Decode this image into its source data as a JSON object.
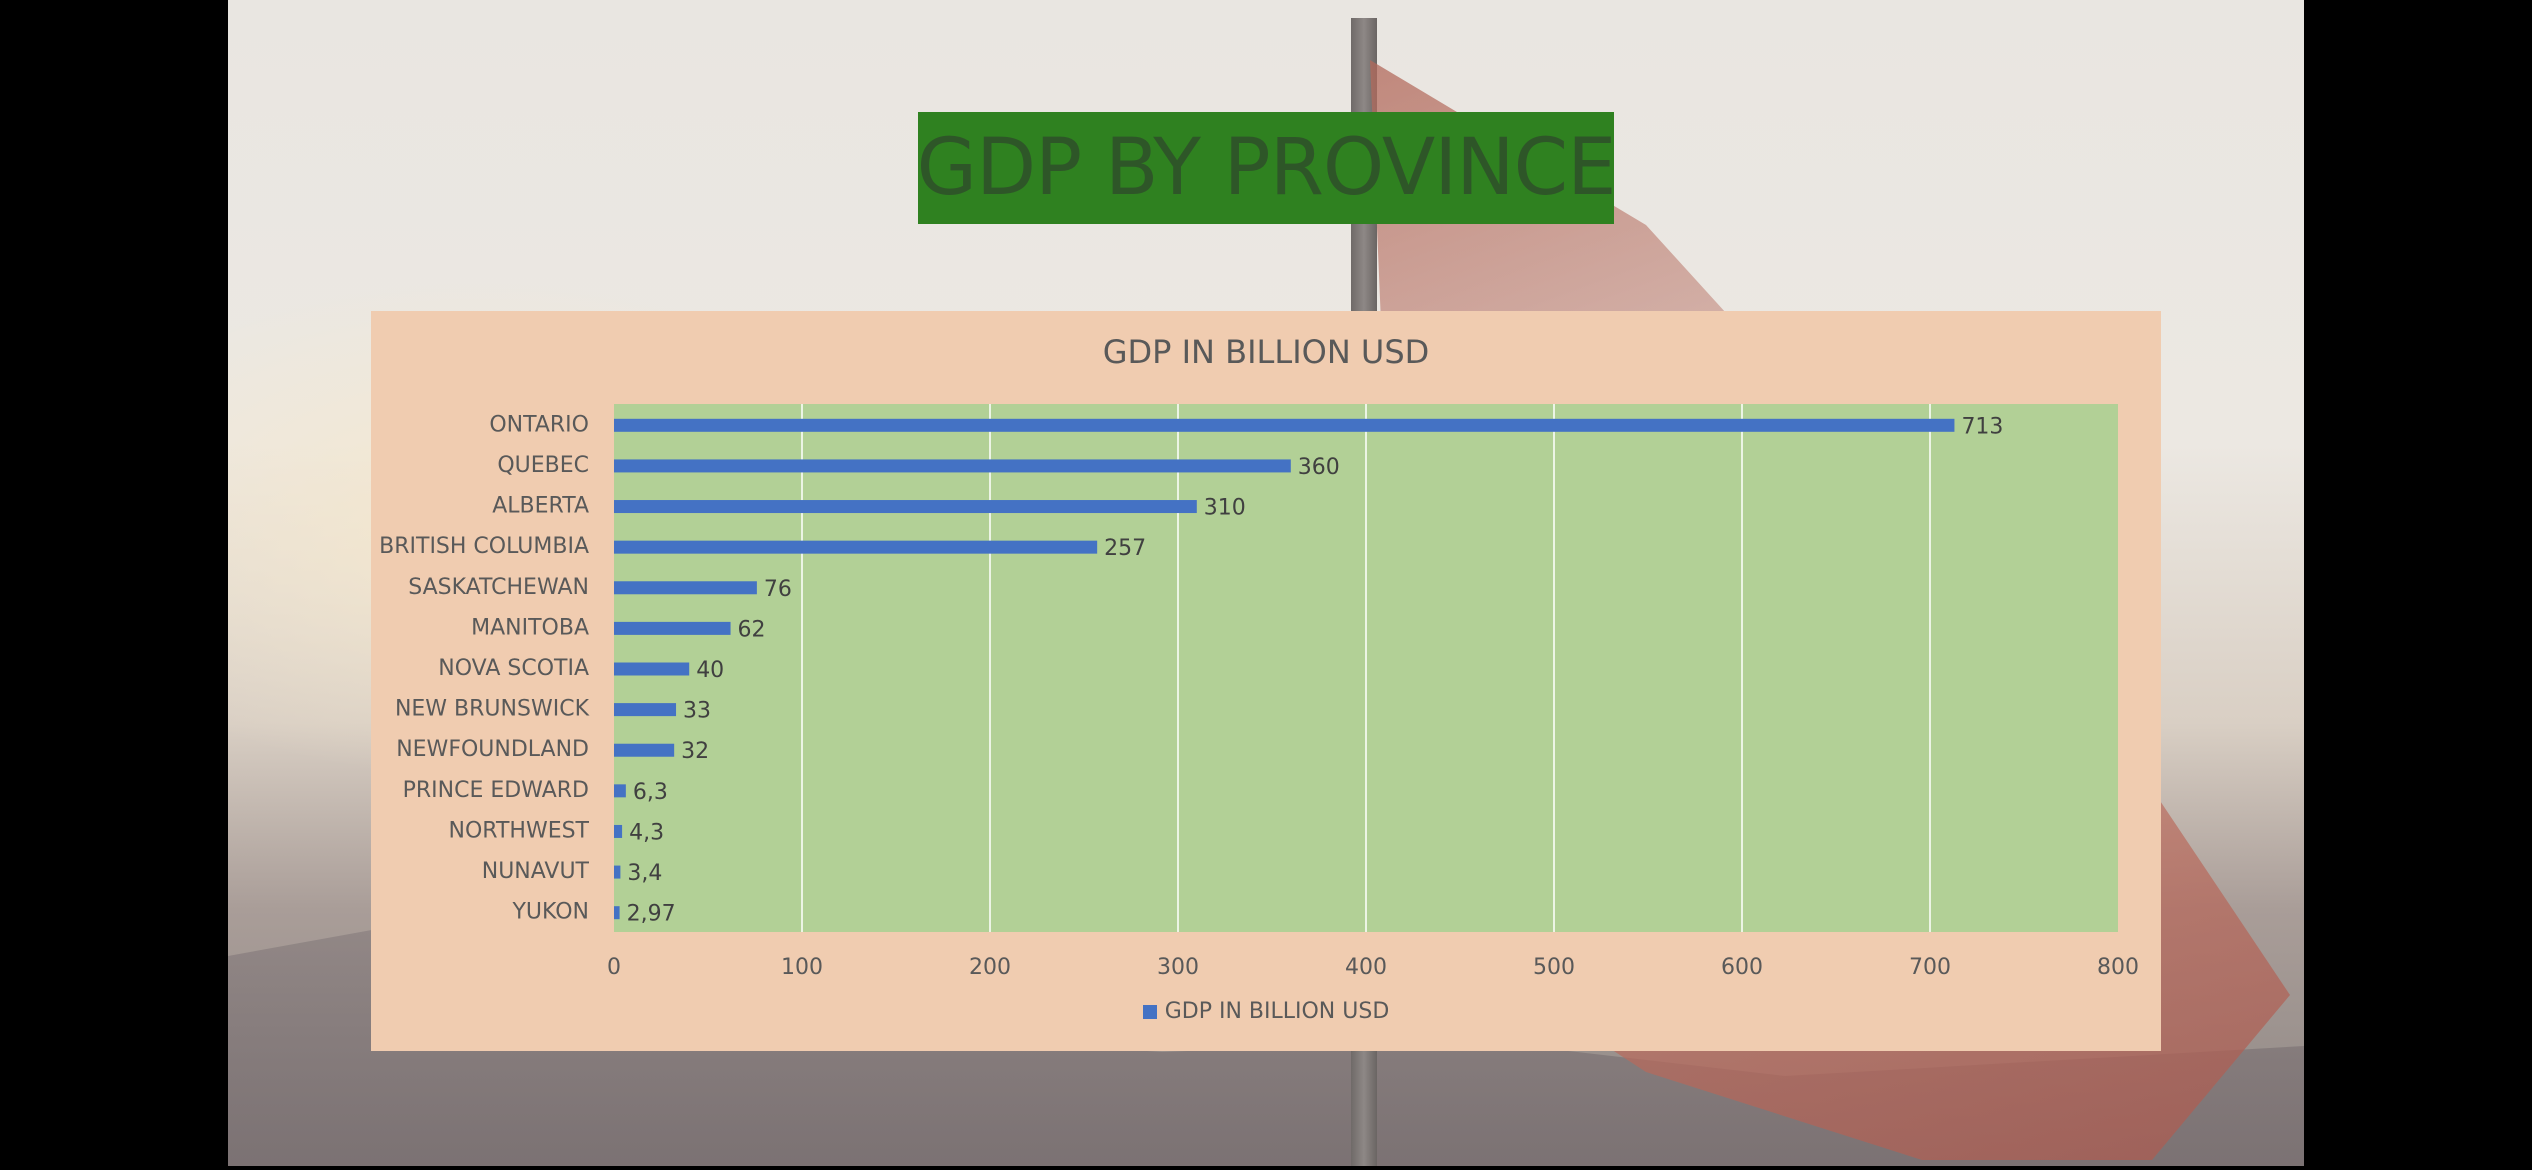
{
  "slide": {
    "title": "GDP BY PROVINCE"
  },
  "chart_data": {
    "type": "bar",
    "orientation": "horizontal",
    "title": "GDP IN BILLION USD",
    "categories": [
      "ONTARIO",
      "QUEBEC",
      "ALBERTA",
      "BRITISH COLUMBIA",
      "SASKATCHEWAN",
      "MANITOBA",
      "NOVA SCOTIA",
      "NEW BRUNSWICK",
      "NEWFOUNDLAND",
      "PRINCE EDWARD",
      "NORTHWEST",
      "NUNAVUT",
      "YUKON"
    ],
    "series": [
      {
        "name": "GDP IN BILLION USD",
        "values": [
          713,
          360,
          310,
          257,
          76,
          62,
          40,
          33,
          32,
          6.3,
          4.3,
          3.4,
          2.97
        ],
        "value_labels": [
          "713",
          "360",
          "310",
          "257",
          "76",
          "62",
          "40",
          "33",
          "32",
          "6,3",
          "4,3",
          "3,4",
          "2,97"
        ]
      }
    ],
    "xlim": [
      0,
      800
    ],
    "xticks": [
      0,
      100,
      200,
      300,
      400,
      500,
      600,
      700,
      800
    ],
    "xlabel": "",
    "ylabel": "",
    "grid": true,
    "legend": "bottom",
    "colors": {
      "bar": "#4472c4",
      "plot_background": "#b2d096",
      "chart_background": "#f0ccb0",
      "gridline": "#ffffff",
      "title_bar": "#2f8120"
    }
  }
}
